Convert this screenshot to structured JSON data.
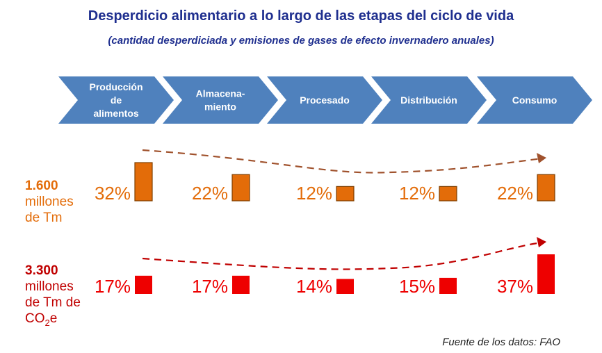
{
  "title": "Desperdicio alimentario a lo largo de las etapas del ciclo de vida",
  "subtitle": "(cantidad desperdiciada y emisiones de gases de efecto invernadero anuales)",
  "stages": [
    {
      "lines": [
        "Producción",
        "de",
        "alimentos"
      ]
    },
    {
      "lines": [
        "Almacena-",
        "miento"
      ]
    },
    {
      "lines": [
        "Procesado"
      ]
    },
    {
      "lines": [
        "Distribución"
      ]
    },
    {
      "lines": [
        "Consumo"
      ]
    }
  ],
  "source": "Fuente de los datos: FAO",
  "colors": {
    "arrow_fill": "#4f81bd",
    "orange": "#e36c09",
    "red": "#ee0000",
    "dark_red": "#c00000"
  },
  "chart_data": [
    {
      "type": "bar",
      "name_number": "1.600",
      "name_rest": [
        "millones",
        "de Tm"
      ],
      "labels": [
        "32%",
        "22%",
        "12%",
        "12%",
        "22%"
      ],
      "values": [
        32,
        22,
        12,
        12,
        22
      ],
      "color": "#e36c09"
    },
    {
      "type": "bar",
      "name_number": "3.300",
      "name_rest": [
        "millones",
        "de Tm de"
      ],
      "name_tail": "CO",
      "name_sub": "2",
      "name_tail2": "e",
      "labels": [
        "17%",
        "17%",
        "14%",
        "15%",
        "37%"
      ],
      "values": [
        17,
        17,
        14,
        15,
        37
      ],
      "color": "#ee0000"
    }
  ]
}
